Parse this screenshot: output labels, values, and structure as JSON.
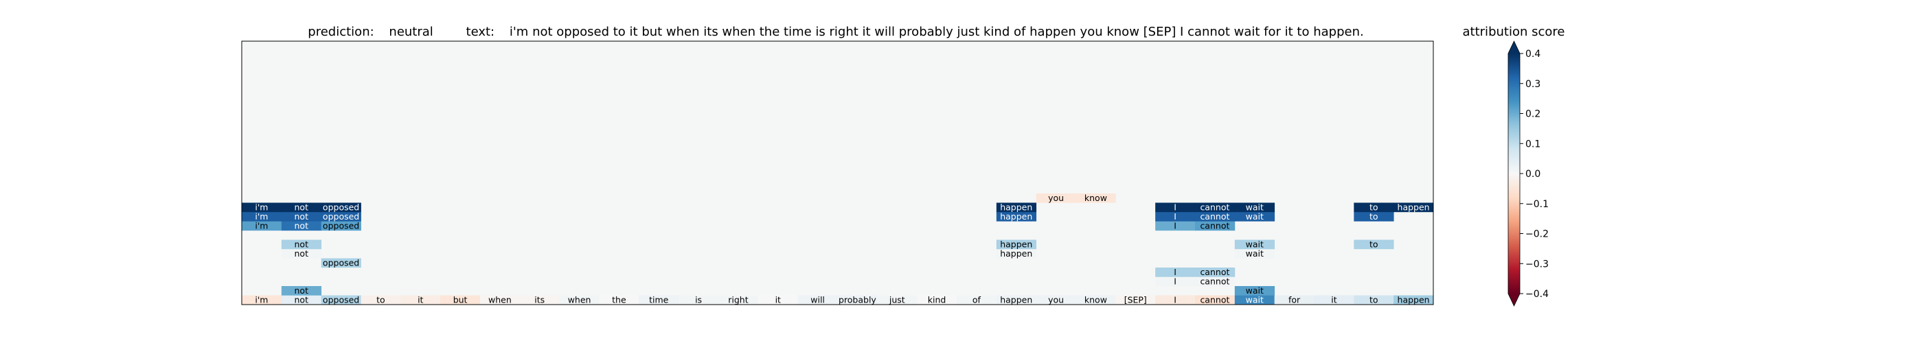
{
  "chart_data": {
    "type": "heatmap",
    "title": {
      "prediction_label": "prediction:",
      "prediction_value": "neutral",
      "text_label": "text:",
      "text_value": "i'm not opposed to it but when its when the time is right it will probably just kind of happen you know [SEP] I cannot wait for it to happen."
    },
    "tokens": [
      "i'm",
      "not",
      "opposed",
      "to",
      "it",
      "but",
      "when",
      "its",
      "when",
      "the",
      "time",
      "is",
      "right",
      "it",
      "will",
      "probably",
      "just",
      "kind",
      "of",
      "happen",
      "you",
      "know",
      "[SEP]",
      "I",
      "cannot",
      "wait",
      "for",
      "it",
      "to",
      "happen"
    ],
    "n_rows": 30,
    "rows_from_bottom": [
      {
        "row": 0,
        "cells": [
          {
            "col": 0,
            "score": -0.05
          },
          {
            "col": 1,
            "score": 0.04
          },
          {
            "col": 2,
            "score": 0.12
          },
          {
            "col": 3,
            "score": -0.02
          },
          {
            "col": 4,
            "score": -0.03
          },
          {
            "col": 5,
            "score": -0.05
          },
          {
            "col": 6,
            "score": -0.01
          },
          {
            "col": 7,
            "score": -0.01
          },
          {
            "col": 8,
            "score": 0.01
          },
          {
            "col": 9,
            "score": 0.0
          },
          {
            "col": 10,
            "score": 0.02
          },
          {
            "col": 11,
            "score": 0.01
          },
          {
            "col": 12,
            "score": 0.01
          },
          {
            "col": 13,
            "score": 0.0
          },
          {
            "col": 14,
            "score": 0.02
          },
          {
            "col": 15,
            "score": 0.02
          },
          {
            "col": 16,
            "score": 0.01
          },
          {
            "col": 17,
            "score": 0.0
          },
          {
            "col": 18,
            "score": 0.01
          },
          {
            "col": 19,
            "score": 0.02
          },
          {
            "col": 20,
            "score": 0.02
          },
          {
            "col": 21,
            "score": 0.02
          },
          {
            "col": 22,
            "score": -0.01
          },
          {
            "col": 23,
            "score": -0.04
          },
          {
            "col": 24,
            "score": -0.06
          },
          {
            "col": 25,
            "score": 0.26
          },
          {
            "col": 26,
            "score": 0.03
          },
          {
            "col": 27,
            "score": 0.04
          },
          {
            "col": 28,
            "score": 0.08
          },
          {
            "col": 29,
            "score": 0.14
          }
        ]
      },
      {
        "row": 1,
        "cells": [
          {
            "col": 1,
            "score": 0.2
          },
          {
            "col": 25,
            "score": 0.22
          }
        ]
      },
      {
        "row": 2,
        "cells": [
          {
            "col": 23,
            "score": 0.01
          },
          {
            "col": 24,
            "score": 0.01
          }
        ]
      },
      {
        "row": 3,
        "cells": [
          {
            "col": 23,
            "score": 0.13
          },
          {
            "col": 24,
            "score": 0.13
          }
        ]
      },
      {
        "row": 4,
        "cells": [
          {
            "col": 2,
            "score": 0.13
          }
        ]
      },
      {
        "row": 5,
        "cells": [
          {
            "col": 1,
            "score": 0.01
          },
          {
            "col": 19,
            "score": 0.01
          },
          {
            "col": 25,
            "score": 0.01
          }
        ]
      },
      {
        "row": 6,
        "cells": [
          {
            "col": 1,
            "score": 0.13
          },
          {
            "col": 19,
            "score": 0.13
          },
          {
            "col": 25,
            "score": 0.13
          },
          {
            "col": 28,
            "score": 0.13
          }
        ]
      },
      {
        "row": 8,
        "cells": [
          {
            "col": 0,
            "score": 0.22
          },
          {
            "col": 1,
            "score": 0.3
          },
          {
            "col": 2,
            "score": 0.22
          },
          {
            "col": 23,
            "score": 0.2
          },
          {
            "col": 24,
            "score": 0.22
          }
        ]
      },
      {
        "row": 9,
        "cells": [
          {
            "col": 0,
            "score": 0.33
          },
          {
            "col": 1,
            "score": 0.33
          },
          {
            "col": 2,
            "score": 0.33
          },
          {
            "col": 19,
            "score": 0.33
          },
          {
            "col": 23,
            "score": 0.33
          },
          {
            "col": 24,
            "score": 0.33
          },
          {
            "col": 25,
            "score": 0.33
          },
          {
            "col": 28,
            "score": 0.33
          }
        ]
      },
      {
        "row": 10,
        "cells": [
          {
            "col": 0,
            "score": 0.4
          },
          {
            "col": 1,
            "score": 0.4
          },
          {
            "col": 2,
            "score": 0.4
          },
          {
            "col": 19,
            "score": 0.4
          },
          {
            "col": 23,
            "score": 0.4
          },
          {
            "col": 24,
            "score": 0.4
          },
          {
            "col": 25,
            "score": 0.4
          },
          {
            "col": 28,
            "score": 0.4
          },
          {
            "col": 29,
            "score": 0.4
          }
        ]
      },
      {
        "row": 11,
        "cells": [
          {
            "col": 20,
            "score": -0.05
          },
          {
            "col": 21,
            "score": -0.05
          }
        ]
      }
    ],
    "colorbar": {
      "label": "attribution score",
      "colormap": "RdBu",
      "vmin": -0.4,
      "vmax": 0.4,
      "extend": "both",
      "ticks": [
        0.4,
        0.3,
        0.2,
        0.1,
        0.0,
        -0.1,
        -0.2,
        -0.3,
        -0.4
      ],
      "tick_labels": [
        "0.4",
        "0.3",
        "0.2",
        "0.1",
        "0.0",
        "−0.1",
        "−0.2",
        "−0.3",
        "−0.4"
      ]
    },
    "colors": {
      "background": "#f5f7f6",
      "neutral": "#f7f7f7"
    }
  }
}
